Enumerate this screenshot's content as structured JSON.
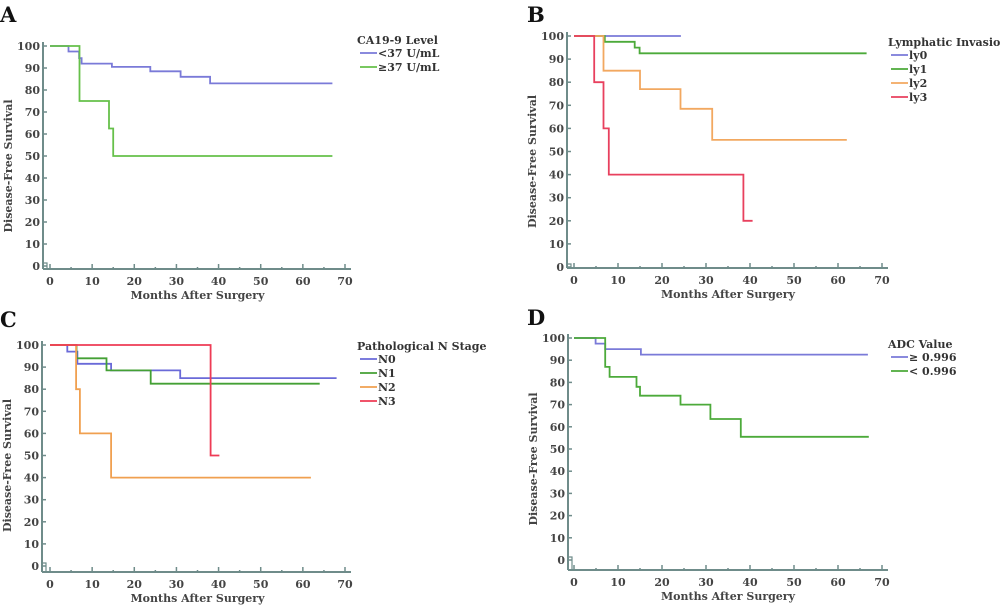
{
  "axis_color": "#6f8c8a",
  "chart_data": [
    {
      "panel": "A",
      "type": "line",
      "step": true,
      "xlabel": "Months After Surgery",
      "ylabel": "Disease-Free Survival",
      "xlim": [
        0,
        70
      ],
      "ylim": [
        0,
        100
      ],
      "xticks": [
        0,
        10,
        20,
        30,
        40,
        50,
        60,
        70
      ],
      "yticks": [
        0,
        10,
        20,
        30,
        40,
        50,
        60,
        70,
        80,
        90,
        100
      ],
      "legend_title": "CA19-9 Level",
      "legend_position": "top-right",
      "series": [
        {
          "name": "<37 U/mL",
          "color": "#7a7ad8",
          "points": [
            [
              0,
              100
            ],
            [
              4.4,
              97.5
            ],
            [
              6.9,
              94.5
            ],
            [
              7.5,
              92
            ],
            [
              14.7,
              90.5
            ],
            [
              23.8,
              88.5
            ],
            [
              31,
              86
            ],
            [
              38,
              83
            ],
            [
              67,
              83
            ]
          ]
        },
        {
          "name": "≥37  U/mL",
          "color": "#66c04a",
          "points": [
            [
              0,
              100
            ],
            [
              7,
              75
            ],
            [
              14,
              62.5
            ],
            [
              15,
              50
            ],
            [
              67,
              50
            ]
          ]
        }
      ]
    },
    {
      "panel": "B",
      "type": "line",
      "step": true,
      "xlabel": "Months After Surgery",
      "ylabel": "Disease-Free Survival",
      "xlim": [
        0,
        70
      ],
      "ylim": [
        0,
        100
      ],
      "xticks": [
        0,
        10,
        20,
        30,
        40,
        50,
        60,
        70
      ],
      "yticks": [
        0,
        10,
        20,
        30,
        40,
        50,
        60,
        70,
        80,
        90,
        100
      ],
      "legend_title": "Lymphatic Invasion",
      "legend_position": "top-right",
      "series": [
        {
          "name": "ly0",
          "color": "#7a7ad8",
          "points": [
            [
              0,
              100
            ],
            [
              24.3,
              100
            ]
          ]
        },
        {
          "name": "ly1",
          "color": "#4caa3a",
          "points": [
            [
              0,
              100
            ],
            [
              7,
              97.5
            ],
            [
              13.8,
              95
            ],
            [
              14.9,
              92.5
            ],
            [
              66.5,
              92.5
            ]
          ]
        },
        {
          "name": "ly2",
          "color": "#f2a860",
          "points": [
            [
              0,
              100
            ],
            [
              6.7,
              85
            ],
            [
              15,
              77
            ],
            [
              24.2,
              68.5
            ],
            [
              31.4,
              55
            ],
            [
              62,
              55
            ]
          ]
        },
        {
          "name": "ly3",
          "color": "#e8405e",
          "points": [
            [
              0,
              100
            ],
            [
              4.6,
              80
            ],
            [
              6.7,
              60
            ],
            [
              7.9,
              40
            ],
            [
              38.5,
              20
            ],
            [
              40.6,
              20
            ]
          ]
        }
      ]
    },
    {
      "panel": "C",
      "type": "line",
      "step": true,
      "xlabel": "Months After Surgery",
      "ylabel": "Disease-Free Survival",
      "xlim": [
        0,
        70
      ],
      "ylim": [
        0,
        100
      ],
      "xticks": [
        0,
        10,
        20,
        30,
        40,
        50,
        60,
        70
      ],
      "yticks": [
        0,
        10,
        20,
        30,
        40,
        50,
        60,
        70,
        80,
        90,
        100
      ],
      "legend_title": "Pathological N Stage",
      "legend_position": "top-right",
      "series": [
        {
          "name": "N0",
          "color": "#6a6ad8",
          "points": [
            [
              0,
              100
            ],
            [
              4.1,
              97
            ],
            [
              6.5,
              91.5
            ],
            [
              14.5,
              88.5
            ],
            [
              30.9,
              85
            ],
            [
              68,
              85
            ]
          ]
        },
        {
          "name": "N1",
          "color": "#44a035",
          "points": [
            [
              0,
              100
            ],
            [
              6.3,
              94
            ],
            [
              13.4,
              88.5
            ],
            [
              23.9,
              82.5
            ],
            [
              64,
              82.5
            ]
          ]
        },
        {
          "name": "N2",
          "color": "#f0a050",
          "points": [
            [
              0,
              100
            ],
            [
              6.2,
              80
            ],
            [
              7.1,
              60
            ],
            [
              14.5,
              40
            ],
            [
              61.9,
              40
            ]
          ]
        },
        {
          "name": "N3",
          "color": "#ee3b55",
          "points": [
            [
              0,
              100
            ],
            [
              38.1,
              50
            ],
            [
              40.2,
              50
            ]
          ]
        }
      ]
    },
    {
      "panel": "D",
      "type": "line",
      "step": true,
      "xlabel": "Months After Surgery",
      "ylabel": "Disease-Free Survival",
      "xlim": [
        0,
        70
      ],
      "ylim": [
        0,
        100
      ],
      "xticks": [
        0,
        10,
        20,
        30,
        40,
        50,
        60,
        70
      ],
      "yticks": [
        0,
        10,
        20,
        30,
        40,
        50,
        60,
        70,
        80,
        90,
        100
      ],
      "legend_title": "ADC  Value",
      "legend_position": "top-right",
      "series": [
        {
          "name": "≥ 0.996",
          "color": "#7a7ad8",
          "points": [
            [
              0,
              100
            ],
            [
              4.9,
              97.5
            ],
            [
              7.1,
              95
            ],
            [
              15.2,
              92.5
            ],
            [
              66.8,
              92.5
            ]
          ]
        },
        {
          "name": "< 0.996",
          "color": "#4caa3a",
          "points": [
            [
              0,
              100
            ],
            [
              7.1,
              87
            ],
            [
              8.1,
              82.5
            ],
            [
              14.2,
              78
            ],
            [
              15,
              74
            ],
            [
              24.2,
              70
            ],
            [
              31,
              63.5
            ],
            [
              37.9,
              55.5
            ],
            [
              67,
              55.5
            ]
          ]
        }
      ]
    }
  ]
}
